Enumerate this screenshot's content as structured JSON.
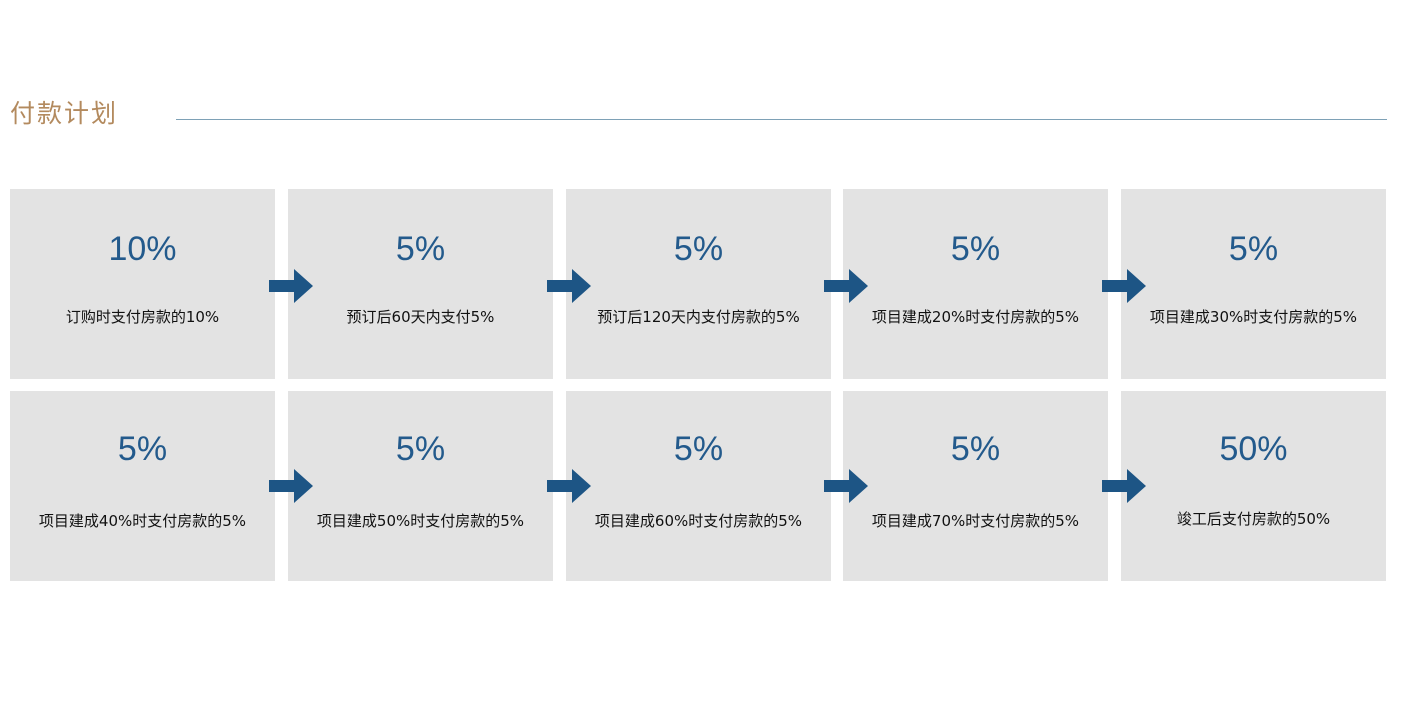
{
  "title": "付款计划",
  "colors": {
    "title": "#b38a5e",
    "rule": "#7ea1b6",
    "box_bg": "#e3e3e3",
    "percent": "#235a8c",
    "arrow": "#1d5585"
  },
  "steps": [
    {
      "percent": "10%",
      "desc": "订购时支付房款的10%"
    },
    {
      "percent": "5%",
      "desc": "预订后60天内支付5%"
    },
    {
      "percent": "5%",
      "desc": "预订后120天内支付房款的5%"
    },
    {
      "percent": "5%",
      "desc": "项目建成20%时支付房款的5%"
    },
    {
      "percent": "5%",
      "desc": "项目建成30%时支付房款的5%"
    },
    {
      "percent": "5%",
      "desc": "项目建成40%时支付房款的5%"
    },
    {
      "percent": "5%",
      "desc": "项目建成50%时支付房款的5%"
    },
    {
      "percent": "5%",
      "desc": "项目建成60%时支付房款的5%"
    },
    {
      "percent": "5%",
      "desc": "项目建成70%时支付房款的5%"
    },
    {
      "percent": "50%",
      "desc": "竣工后支付房款的50%"
    }
  ]
}
